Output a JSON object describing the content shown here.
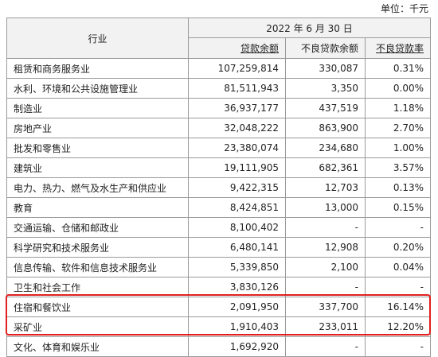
{
  "unit": "单位：千元",
  "table": {
    "header": {
      "industry": "行业",
      "date": "2022 年 6 月 30 日",
      "columns": [
        "贷款余额",
        "不良贷款余额",
        "不良贷款率"
      ]
    },
    "rows": [
      [
        "租赁和商务服务业",
        "107,259,814",
        "330,087",
        "0.31%"
      ],
      [
        "水利、环境和公共设施管理业",
        "81,511,943",
        "3,350",
        "0.00%"
      ],
      [
        "制造业",
        "36,937,177",
        "437,519",
        "1.18%"
      ],
      [
        "房地产业",
        "32,048,222",
        "863,900",
        "2.70%"
      ],
      [
        "批发和零售业",
        "23,380,074",
        "234,680",
        "1.00%"
      ],
      [
        "建筑业",
        "19,111,905",
        "682,361",
        "3.57%"
      ],
      [
        "电力、热力、燃气及水生产和供应业",
        "9,422,315",
        "12,703",
        "0.13%"
      ],
      [
        "教育",
        "8,424,851",
        "13,000",
        "0.15%"
      ],
      [
        "交通运输、仓储和邮政业",
        "8,100,402",
        "-",
        "-"
      ],
      [
        "科学研究和技术服务业",
        "6,480,141",
        "12,908",
        "0.20%"
      ],
      [
        "信息传输、软件和信息技术服务业",
        "5,339,850",
        "2,100",
        "0.04%"
      ],
      [
        "卫生和社会工作",
        "3,830,126",
        "-",
        "-"
      ],
      [
        "住宿和餐饮业",
        "2,091,950",
        "337,700",
        "16.14%"
      ],
      [
        "采矿业",
        "1,910,403",
        "233,011",
        "12.20%"
      ],
      [
        "文化、体育和娱乐业",
        "1,692,920",
        "-",
        "-"
      ]
    ]
  }
}
